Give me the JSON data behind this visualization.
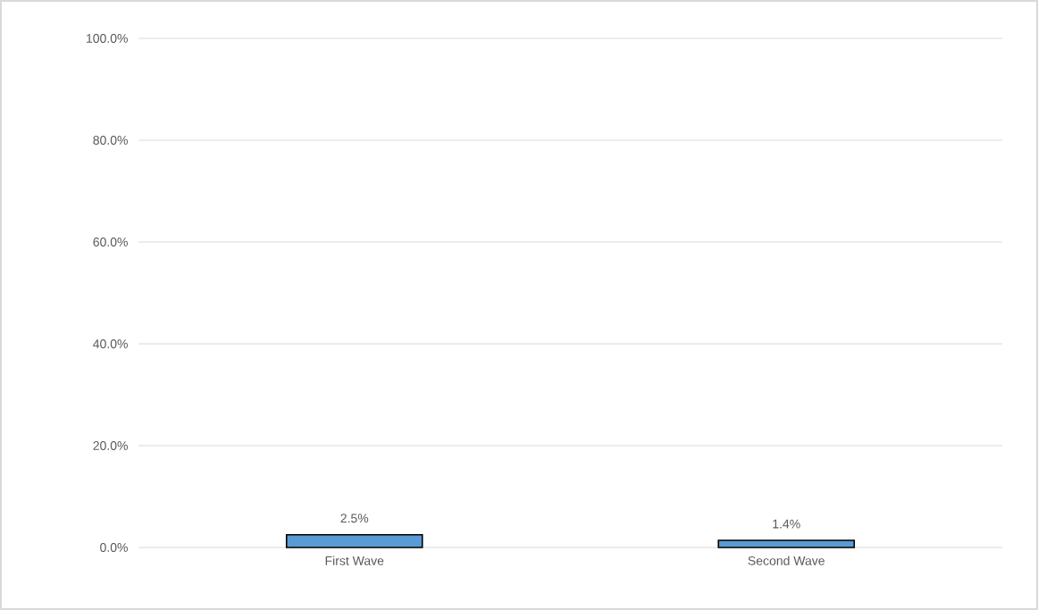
{
  "chart_data": {
    "type": "bar",
    "categories": [
      "First Wave",
      "Second Wave"
    ],
    "values": [
      2.5,
      1.4
    ],
    "value_labels": [
      "2.5%",
      "1.4%"
    ],
    "color": "#5b9bd5",
    "ylim": [
      0,
      100
    ],
    "yticks": [
      {
        "value": 0,
        "label": "0.0%"
      },
      {
        "value": 20,
        "label": "20.0%"
      },
      {
        "value": 40,
        "label": "40.0%"
      },
      {
        "value": 60,
        "label": "60.0%"
      },
      {
        "value": 80,
        "label": "80.0%"
      },
      {
        "value": 100,
        "label": "100.0%"
      }
    ],
    "grid": "y"
  }
}
